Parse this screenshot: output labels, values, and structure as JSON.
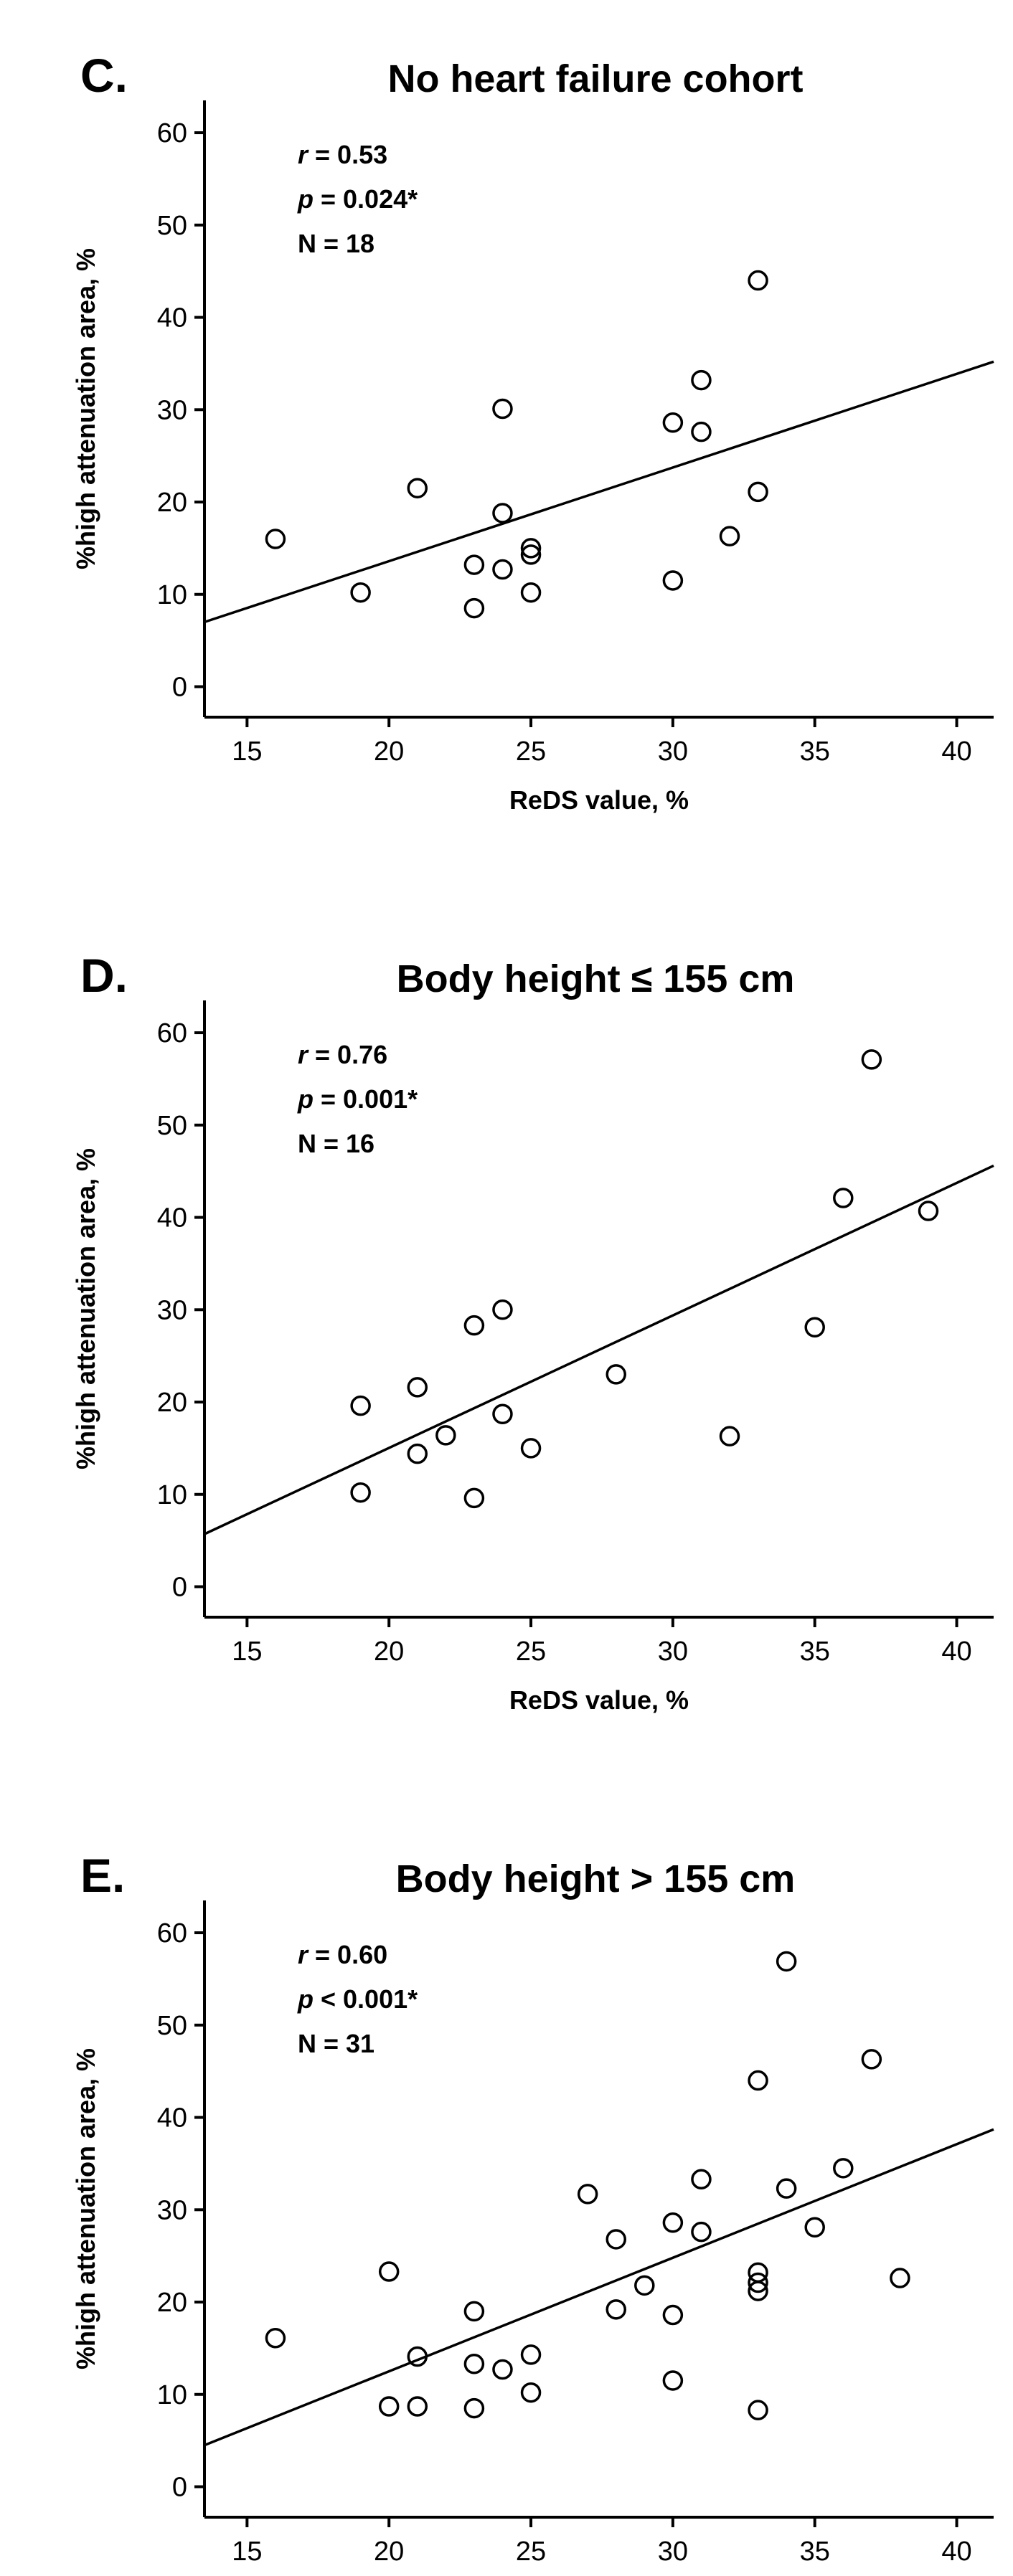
{
  "chart_data": [
    {
      "type": "scatter",
      "letter": "C.",
      "title": "No heart failure cohort",
      "stats": {
        "r": "r = 0.53",
        "p": "p = 0.024*",
        "n": "N = 18"
      },
      "xlabel": "ReDS value, %",
      "ylabel": "%high attenuation area, %",
      "xlim": [
        13.5,
        41.3
      ],
      "ylim": [
        -3.3,
        63.5
      ],
      "xticks": [
        15,
        20,
        25,
        30,
        35,
        40
      ],
      "yticks": [
        0,
        10,
        20,
        30,
        40,
        50,
        60
      ],
      "fit_line": {
        "x": [
          13.5,
          41.3
        ],
        "y": [
          7.0,
          35.2
        ]
      },
      "points": [
        {
          "x": 16,
          "y": 16.0
        },
        {
          "x": 19,
          "y": 10.2
        },
        {
          "x": 21,
          "y": 21.5
        },
        {
          "x": 23,
          "y": 8.5
        },
        {
          "x": 23,
          "y": 13.2
        },
        {
          "x": 24,
          "y": 12.7
        },
        {
          "x": 24,
          "y": 18.8
        },
        {
          "x": 24,
          "y": 30.1
        },
        {
          "x": 25,
          "y": 10.2
        },
        {
          "x": 25,
          "y": 14.3
        },
        {
          "x": 25,
          "y": 15.0
        },
        {
          "x": 30,
          "y": 11.5
        },
        {
          "x": 30,
          "y": 28.6
        },
        {
          "x": 31,
          "y": 27.6
        },
        {
          "x": 31,
          "y": 33.2
        },
        {
          "x": 32,
          "y": 16.3
        },
        {
          "x": 33,
          "y": 21.1
        },
        {
          "x": 33,
          "y": 44.0
        }
      ]
    },
    {
      "type": "scatter",
      "letter": "D.",
      "title": "Body height ≤ 155 cm",
      "stats": {
        "r": "r = 0.76",
        "p": "p = 0.001*",
        "n": "N = 16"
      },
      "xlabel": "ReDS value, %",
      "ylabel": "%high attenuation area, %",
      "xlim": [
        13.5,
        41.3
      ],
      "ylim": [
        -3.3,
        63.5
      ],
      "xticks": [
        15,
        20,
        25,
        30,
        35,
        40
      ],
      "yticks": [
        0,
        10,
        20,
        30,
        40,
        50,
        60
      ],
      "fit_line": {
        "x": [
          13.5,
          41.3
        ],
        "y": [
          5.7,
          45.6
        ]
      },
      "points": [
        {
          "x": 19,
          "y": 10.2
        },
        {
          "x": 19,
          "y": 19.6
        },
        {
          "x": 21,
          "y": 14.4
        },
        {
          "x": 21,
          "y": 21.6
        },
        {
          "x": 22,
          "y": 16.4
        },
        {
          "x": 23,
          "y": 9.6
        },
        {
          "x": 23,
          "y": 28.3
        },
        {
          "x": 24,
          "y": 18.7
        },
        {
          "x": 24,
          "y": 30.0
        },
        {
          "x": 25,
          "y": 15.0
        },
        {
          "x": 28,
          "y": 23.0
        },
        {
          "x": 32,
          "y": 16.3
        },
        {
          "x": 35,
          "y": 28.1
        },
        {
          "x": 36,
          "y": 42.1
        },
        {
          "x": 37,
          "y": 57.1
        },
        {
          "x": 39,
          "y": 40.7
        }
      ]
    },
    {
      "type": "scatter",
      "letter": "E.",
      "title": "Body height > 155 cm",
      "stats": {
        "r": "r = 0.60",
        "p": "p < 0.001*",
        "n": "N = 31"
      },
      "xlabel": "ReDS value, %",
      "ylabel": "%high attenuation area, %",
      "xlim": [
        13.5,
        41.3
      ],
      "ylim": [
        -3.3,
        63.5
      ],
      "xticks": [
        15,
        20,
        25,
        30,
        35,
        40
      ],
      "yticks": [
        0,
        10,
        20,
        30,
        40,
        50,
        60
      ],
      "fit_line": {
        "x": [
          13.5,
          41.3
        ],
        "y": [
          4.5,
          38.7
        ]
      },
      "points": [
        {
          "x": 16,
          "y": 16.1
        },
        {
          "x": 20,
          "y": 8.7
        },
        {
          "x": 20,
          "y": 23.3
        },
        {
          "x": 21,
          "y": 8.7
        },
        {
          "x": 21,
          "y": 14.1
        },
        {
          "x": 23,
          "y": 8.5
        },
        {
          "x": 23,
          "y": 13.3
        },
        {
          "x": 23,
          "y": 19.0
        },
        {
          "x": 24,
          "y": 12.7
        },
        {
          "x": 25,
          "y": 10.2
        },
        {
          "x": 25,
          "y": 14.3
        },
        {
          "x": 27,
          "y": 31.7
        },
        {
          "x": 28,
          "y": 19.2
        },
        {
          "x": 28,
          "y": 26.8
        },
        {
          "x": 29,
          "y": 21.8
        },
        {
          "x": 30,
          "y": 11.5
        },
        {
          "x": 30,
          "y": 18.6
        },
        {
          "x": 30,
          "y": 28.6
        },
        {
          "x": 31,
          "y": 27.6
        },
        {
          "x": 31,
          "y": 33.3
        },
        {
          "x": 33,
          "y": 8.3
        },
        {
          "x": 33,
          "y": 21.2
        },
        {
          "x": 33,
          "y": 22.1
        },
        {
          "x": 33,
          "y": 23.2
        },
        {
          "x": 33,
          "y": 44.0
        },
        {
          "x": 34,
          "y": 32.3
        },
        {
          "x": 34,
          "y": 56.9
        },
        {
          "x": 35,
          "y": 28.1
        },
        {
          "x": 36,
          "y": 34.5
        },
        {
          "x": 37,
          "y": 46.3
        },
        {
          "x": 38,
          "y": 22.6
        }
      ]
    }
  ]
}
